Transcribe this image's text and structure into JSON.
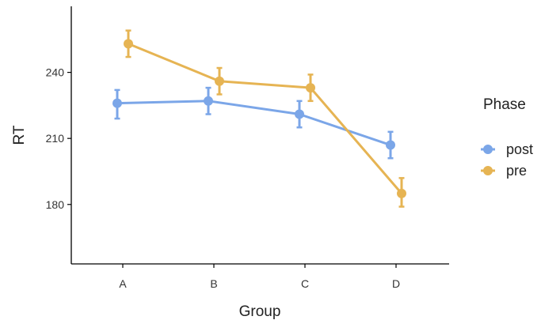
{
  "chart_data": {
    "type": "line",
    "title": "",
    "xlabel": "Group",
    "ylabel": "RT",
    "categories": [
      "A",
      "B",
      "C",
      "D"
    ],
    "ylim": [
      153,
      270
    ],
    "yticks": [
      180,
      210,
      240
    ],
    "grid": false,
    "legend_title": "Phase",
    "legend_position": "right",
    "series": [
      {
        "name": "post",
        "color": "#7ba6e8",
        "values": [
          226,
          227,
          221,
          207
        ],
        "err_low": [
          219,
          221,
          215,
          201
        ],
        "err_high": [
          232,
          233,
          227,
          213
        ]
      },
      {
        "name": "pre",
        "color": "#e6b453",
        "values": [
          253,
          236,
          233,
          185
        ],
        "err_low": [
          247,
          230,
          227,
          179
        ],
        "err_high": [
          259,
          242,
          239,
          192
        ]
      }
    ]
  }
}
